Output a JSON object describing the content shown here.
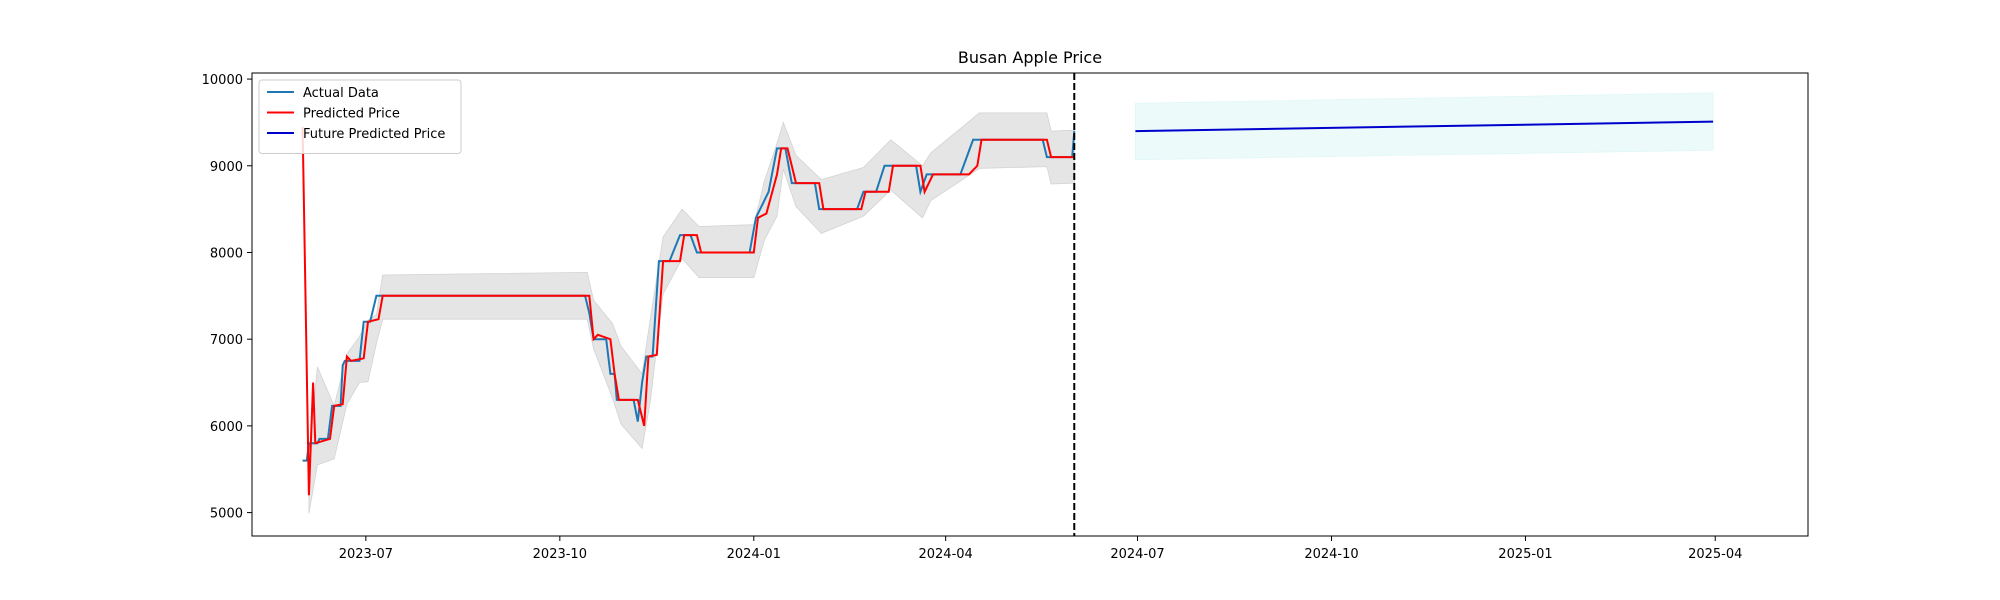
{
  "chart_data": {
    "type": "line",
    "title": "Busan Apple Price",
    "xlabel": "",
    "ylabel": "",
    "x_range": [
      "2023-05-08",
      "2025-05-15"
    ],
    "ylim": [
      4730,
      10070
    ],
    "x_ticks": [
      {
        "date": "2023-07-01",
        "label": "2023-07"
      },
      {
        "date": "2023-10-01",
        "label": "2023-10"
      },
      {
        "date": "2024-01-01",
        "label": "2024-01"
      },
      {
        "date": "2024-04-01",
        "label": "2024-04"
      },
      {
        "date": "2024-07-01",
        "label": "2024-07"
      },
      {
        "date": "2024-10-01",
        "label": "2024-10"
      },
      {
        "date": "2025-01-01",
        "label": "2025-01"
      },
      {
        "date": "2025-04-01",
        "label": "2025-04"
      }
    ],
    "y_ticks": [
      5000,
      6000,
      7000,
      8000,
      9000,
      10000
    ],
    "grid": false,
    "legend": {
      "placement": "top-left",
      "entries": [
        {
          "label": "Actual Data",
          "color": "#1f77b4"
        },
        {
          "label": "Predicted Price",
          "color": "#ff0000"
        },
        {
          "label": "Future Predicted Price",
          "color": "#0000cd"
        }
      ]
    },
    "forecast_start_line": {
      "date": "2024-06-01",
      "color": "#000000",
      "style": "dashed"
    },
    "series": [
      {
        "name": "Actual Data",
        "color": "#1f77b4",
        "points": [
          [
            "2023-06-01",
            5600
          ],
          [
            "2023-06-03",
            5600
          ],
          [
            "2023-06-04",
            5800
          ],
          [
            "2023-06-08",
            5800
          ],
          [
            "2023-06-09",
            5850
          ],
          [
            "2023-06-13",
            5850
          ],
          [
            "2023-06-15",
            6230
          ],
          [
            "2023-06-19",
            6230
          ],
          [
            "2023-06-20",
            6700
          ],
          [
            "2023-06-21",
            6750
          ],
          [
            "2023-06-28",
            6750
          ],
          [
            "2023-06-30",
            7200
          ],
          [
            "2023-07-03",
            7200
          ],
          [
            "2023-07-06",
            7500
          ],
          [
            "2023-10-13",
            7500
          ],
          [
            "2023-10-15",
            7300
          ],
          [
            "2023-10-17",
            7000
          ],
          [
            "2023-10-23",
            7000
          ],
          [
            "2023-10-25",
            6600
          ],
          [
            "2023-10-27",
            6600
          ],
          [
            "2023-10-28",
            6300
          ],
          [
            "2023-11-05",
            6300
          ],
          [
            "2023-11-07",
            6050
          ],
          [
            "2023-11-09",
            6500
          ],
          [
            "2023-11-11",
            6800
          ],
          [
            "2023-11-14",
            6800
          ],
          [
            "2023-11-17",
            7900
          ],
          [
            "2023-11-22",
            7900
          ],
          [
            "2023-11-27",
            8200
          ],
          [
            "2023-12-02",
            8200
          ],
          [
            "2023-12-05",
            8000
          ],
          [
            "2023-12-30",
            8000
          ],
          [
            "2024-01-02",
            8400
          ],
          [
            "2024-01-08",
            8700
          ],
          [
            "2024-01-12",
            9200
          ],
          [
            "2024-01-16",
            9200
          ],
          [
            "2024-01-19",
            8800
          ],
          [
            "2024-01-30",
            8800
          ],
          [
            "2024-02-01",
            8500
          ],
          [
            "2024-02-19",
            8500
          ],
          [
            "2024-02-22",
            8700
          ],
          [
            "2024-02-28",
            8700
          ],
          [
            "2024-03-03",
            9000
          ],
          [
            "2024-03-18",
            9000
          ],
          [
            "2024-03-20",
            8700
          ],
          [
            "2024-03-23",
            8900
          ],
          [
            "2024-04-08",
            8900
          ],
          [
            "2024-04-14",
            9300
          ],
          [
            "2024-05-17",
            9300
          ],
          [
            "2024-05-19",
            9100
          ],
          [
            "2024-05-31",
            9100
          ],
          [
            "2024-06-01",
            9400
          ]
        ]
      },
      {
        "name": "Predicted Price",
        "color": "#ff0000",
        "points": [
          [
            "2023-06-01",
            9450
          ],
          [
            "2023-06-04",
            5200
          ],
          [
            "2023-06-06",
            6500
          ],
          [
            "2023-06-07",
            5800
          ],
          [
            "2023-06-14",
            5850
          ],
          [
            "2023-06-16",
            6230
          ],
          [
            "2023-06-20",
            6250
          ],
          [
            "2023-06-22",
            6800
          ],
          [
            "2023-06-24",
            6750
          ],
          [
            "2023-06-30",
            6780
          ],
          [
            "2023-07-02",
            7200
          ],
          [
            "2023-07-07",
            7230
          ],
          [
            "2023-07-09",
            7500
          ],
          [
            "2023-10-15",
            7500
          ],
          [
            "2023-10-17",
            7000
          ],
          [
            "2023-10-19",
            7050
          ],
          [
            "2023-10-25",
            7000
          ],
          [
            "2023-10-27",
            6600
          ],
          [
            "2023-10-29",
            6300
          ],
          [
            "2023-11-07",
            6300
          ],
          [
            "2023-11-10",
            6000
          ],
          [
            "2023-11-12",
            6800
          ],
          [
            "2023-11-16",
            6820
          ],
          [
            "2023-11-19",
            7900
          ],
          [
            "2023-11-27",
            7900
          ],
          [
            "2023-11-29",
            8200
          ],
          [
            "2023-12-05",
            8200
          ],
          [
            "2023-12-07",
            8000
          ],
          [
            "2024-01-01",
            8000
          ],
          [
            "2024-01-03",
            8400
          ],
          [
            "2024-01-07",
            8450
          ],
          [
            "2024-01-12",
            8900
          ],
          [
            "2024-01-14",
            9200
          ],
          [
            "2024-01-17",
            9200
          ],
          [
            "2024-01-21",
            8800
          ],
          [
            "2024-02-01",
            8800
          ],
          [
            "2024-02-03",
            8500
          ],
          [
            "2024-02-21",
            8500
          ],
          [
            "2024-02-23",
            8700
          ],
          [
            "2024-03-05",
            8700
          ],
          [
            "2024-03-07",
            9000
          ],
          [
            "2024-03-20",
            9000
          ],
          [
            "2024-03-22",
            8700
          ],
          [
            "2024-03-26",
            8900
          ],
          [
            "2024-04-12",
            8900
          ],
          [
            "2024-04-16",
            9000
          ],
          [
            "2024-04-18",
            9300
          ],
          [
            "2024-05-19",
            9300
          ],
          [
            "2024-05-21",
            9100
          ],
          [
            "2024-06-01",
            9100
          ]
        ]
      },
      {
        "name": "Future Predicted Price",
        "color": "#0000cd",
        "points": [
          [
            "2024-06-30",
            9400
          ],
          [
            "2025-03-31",
            9510
          ]
        ]
      }
    ],
    "confidence_bands": [
      {
        "for": "Predicted Price",
        "color": "#d3d3d3",
        "points": [
          [
            "2023-06-04",
            4990,
            5650
          ],
          [
            "2023-06-08",
            5550,
            6680
          ],
          [
            "2023-06-16",
            5620,
            6230
          ],
          [
            "2023-06-22",
            6250,
            6830
          ],
          [
            "2023-06-28",
            6500,
            7030
          ],
          [
            "2023-07-02",
            6510,
            7220
          ],
          [
            "2023-07-06",
            6950,
            7280
          ],
          [
            "2023-07-09",
            7230,
            7740
          ],
          [
            "2023-10-14",
            7230,
            7770
          ],
          [
            "2023-10-17",
            6890,
            7450
          ],
          [
            "2023-10-26",
            6320,
            7180
          ],
          [
            "2023-10-30",
            6020,
            6920
          ],
          [
            "2023-11-09",
            5740,
            6600
          ],
          [
            "2023-11-13",
            6300,
            7250
          ],
          [
            "2023-11-19",
            7520,
            8180
          ],
          [
            "2023-11-28",
            7930,
            8500
          ],
          [
            "2023-12-06",
            7710,
            8300
          ],
          [
            "2024-01-01",
            7710,
            8320
          ],
          [
            "2024-01-06",
            8140,
            8820
          ],
          [
            "2024-01-12",
            8420,
            9260
          ],
          [
            "2024-01-15",
            8960,
            9500
          ],
          [
            "2024-01-21",
            8530,
            9120
          ],
          [
            "2024-02-02",
            8220,
            8840
          ],
          [
            "2024-02-22",
            8420,
            8980
          ],
          [
            "2024-03-06",
            8720,
            9300
          ],
          [
            "2024-03-21",
            8400,
            9000
          ],
          [
            "2024-03-25",
            8600,
            9150
          ],
          [
            "2024-04-17",
            8970,
            9610
          ],
          [
            "2024-05-19",
            8990,
            9610
          ],
          [
            "2024-05-21",
            8790,
            9400
          ],
          [
            "2024-06-01",
            8800,
            9410
          ]
        ]
      },
      {
        "for": "Future Predicted Price",
        "color": "#e0f7f7",
        "points": [
          [
            "2024-06-30",
            9070,
            9720
          ],
          [
            "2025-03-31",
            9180,
            9840
          ]
        ]
      }
    ]
  }
}
